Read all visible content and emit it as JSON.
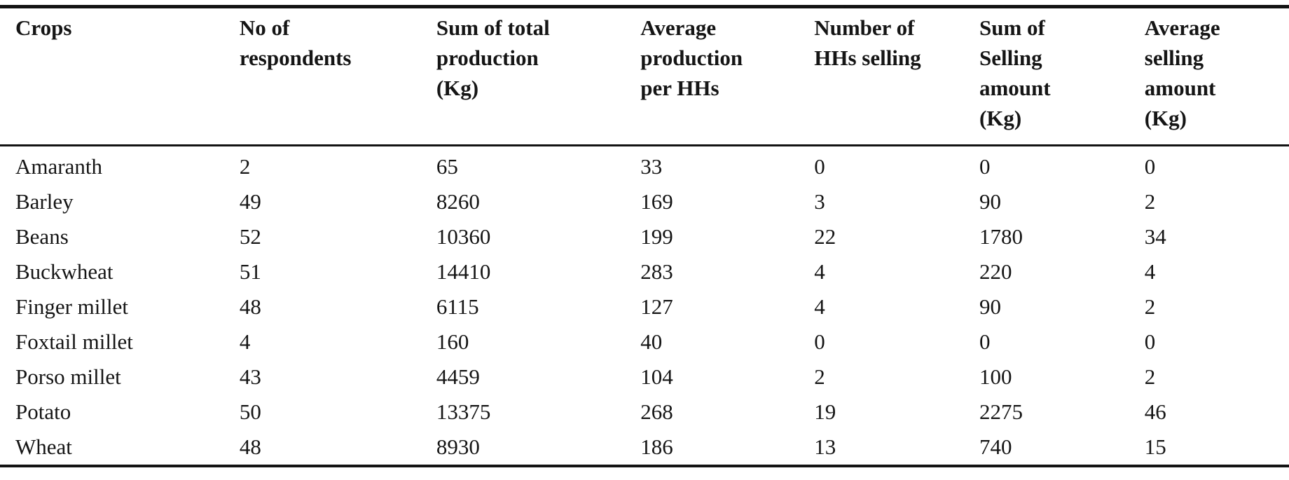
{
  "colors": {
    "text": "#151515",
    "rule": "#131313",
    "background": "#ffffff"
  },
  "table": {
    "columns": [
      "Crops",
      "No of\nrespondents",
      "Sum of total\nproduction\n(Kg)",
      "Average\nproduction\nper HHs",
      "Number of\nHHs selling",
      "Sum of\nSelling\namount\n(Kg)",
      "Average\nselling\namount\n(Kg)"
    ],
    "rows": [
      [
        "Amaranth",
        "2",
        "65",
        "33",
        "0",
        "0",
        "0"
      ],
      [
        "Barley",
        "49",
        "8260",
        "169",
        "3",
        "90",
        "2"
      ],
      [
        "Beans",
        "52",
        "10360",
        "199",
        "22",
        "1780",
        "34"
      ],
      [
        "Buckwheat",
        "51",
        "14410",
        "283",
        "4",
        "220",
        "4"
      ],
      [
        "Finger millet",
        "48",
        "6115",
        "127",
        "4",
        "90",
        "2"
      ],
      [
        "Foxtail millet",
        "4",
        "160",
        "40",
        "0",
        "0",
        "0"
      ],
      [
        "Porso millet",
        "43",
        "4459",
        "104",
        "2",
        "100",
        "2"
      ],
      [
        "Potato",
        "50",
        "13375",
        "268",
        "19",
        "2275",
        "46"
      ],
      [
        "Wheat",
        "48",
        "8930",
        "186",
        "13",
        "740",
        "15"
      ]
    ]
  }
}
